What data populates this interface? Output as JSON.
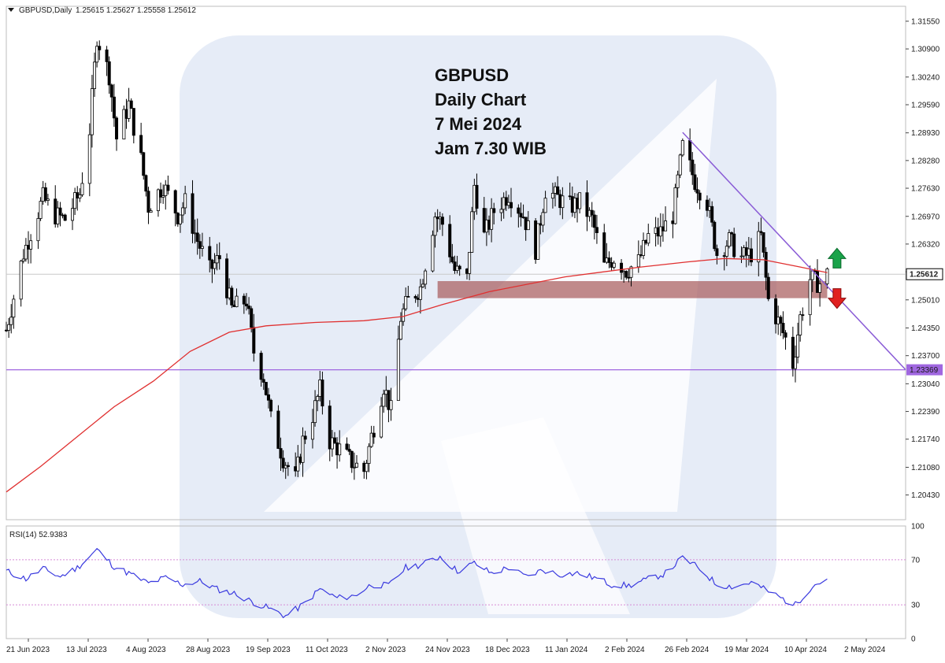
{
  "header": {
    "symbol": "GBPUSD,Daily",
    "ohlc": "1.25615 1.25627 1.25558 1.25612"
  },
  "annotation": {
    "lines": [
      "GBPUSD",
      "Daily Chart",
      "7 Mei 2024",
      "Jam 7.30 WIB"
    ]
  },
  "chart_data": {
    "type": "candlestick",
    "price_axis": {
      "range": [
        1.1985,
        1.319
      ],
      "ticks": [
        "1.31550",
        "1.30900",
        "1.30240",
        "1.29590",
        "1.28930",
        "1.28280",
        "1.27630",
        "1.26970",
        "1.26320",
        "1.25670",
        "1.25010",
        "1.24350",
        "1.23700",
        "1.23040",
        "1.22390",
        "1.21740",
        "1.21080",
        "1.20430"
      ]
    },
    "current_price": {
      "label": "1.25612",
      "value": 1.25612
    },
    "horizontal_line": {
      "label": "1.23369",
      "value": 1.23369
    },
    "supply_zone": {
      "from_date": "2023-11-29",
      "to_date": "2024-05-06",
      "low": 1.2505,
      "high": 1.2545
    },
    "trendline": {
      "start": [
        "2024-03-08",
        1.2894
      ],
      "end": [
        "2024-06-07",
        1.2337
      ]
    },
    "arrows": [
      {
        "direction": "up",
        "date": "2024-05-10",
        "value": 1.2598
      },
      {
        "direction": "down",
        "date": "2024-05-10",
        "value": 1.2505
      }
    ],
    "x_labels": [
      "21 Jun 2023",
      "13 Jul 2023",
      "4 Aug 2023",
      "28 Aug 2023",
      "19 Sep 2023",
      "11 Oct 2023",
      "2 Nov 2023",
      "24 Nov 2023",
      "18 Dec 2023",
      "11 Jan 2024",
      "2 Feb 2024",
      "26 Feb 2024",
      "19 Mar 2024",
      "10 Apr 2024",
      "2 May 2024"
    ],
    "x_date_range": [
      "2023-06-06",
      "2024-06-07"
    ],
    "close_path": [
      [
        "2023-06-06",
        1.243
      ],
      [
        "2023-06-13",
        1.261
      ],
      [
        "2023-06-21",
        1.274
      ],
      [
        "2023-06-26",
        1.27
      ],
      [
        "2023-06-30",
        1.269
      ],
      [
        "2023-07-06",
        1.275
      ],
      [
        "2023-07-10",
        1.29
      ],
      [
        "2023-07-13",
        1.312
      ],
      [
        "2023-07-18",
        1.303
      ],
      [
        "2023-07-21",
        1.288
      ],
      [
        "2023-07-26",
        1.296
      ],
      [
        "2023-07-31",
        1.283
      ],
      [
        "2023-08-03",
        1.272
      ],
      [
        "2023-08-09",
        1.277
      ],
      [
        "2023-08-15",
        1.27
      ],
      [
        "2023-08-18",
        1.273
      ],
      [
        "2023-08-23",
        1.264
      ],
      [
        "2023-08-28",
        1.257
      ],
      [
        "2023-09-01",
        1.26
      ],
      [
        "2023-09-06",
        1.248
      ],
      [
        "2023-09-12",
        1.25
      ],
      [
        "2023-09-15",
        1.238
      ],
      [
        "2023-09-19",
        1.232
      ],
      [
        "2023-09-22",
        1.222
      ],
      [
        "2023-09-27",
        1.213
      ],
      [
        "2023-10-02",
        1.208
      ],
      [
        "2023-10-05",
        1.217
      ],
      [
        "2023-10-09",
        1.223
      ],
      [
        "2023-10-12",
        1.229
      ],
      [
        "2023-10-16",
        1.217
      ],
      [
        "2023-10-20",
        1.215
      ],
      [
        "2023-10-25",
        1.212
      ],
      [
        "2023-10-30",
        1.21
      ],
      [
        "2023-11-02",
        1.218
      ],
      [
        "2023-11-07",
        1.23
      ],
      [
        "2023-11-10",
        1.224
      ],
      [
        "2023-11-14",
        1.246
      ],
      [
        "2023-11-17",
        1.25
      ],
      [
        "2023-11-22",
        1.253
      ],
      [
        "2023-11-28",
        1.27
      ],
      [
        "2023-12-01",
        1.268
      ],
      [
        "2023-12-06",
        1.257
      ],
      [
        "2023-12-11",
        1.255
      ],
      [
        "2023-12-14",
        1.277
      ],
      [
        "2023-12-18",
        1.265
      ],
      [
        "2023-12-22",
        1.271
      ],
      [
        "2023-12-28",
        1.275
      ],
      [
        "2024-01-03",
        1.27
      ],
      [
        "2024-01-08",
        1.262
      ],
      [
        "2024-01-12",
        1.276
      ],
      [
        "2024-01-17",
        1.274
      ],
      [
        "2024-01-22",
        1.272
      ],
      [
        "2024-01-26",
        1.273
      ],
      [
        "2024-01-31",
        1.269
      ],
      [
        "2024-02-05",
        1.258
      ],
      [
        "2024-02-09",
        1.26
      ],
      [
        "2024-02-14",
        1.257
      ],
      [
        "2024-02-19",
        1.259
      ],
      [
        "2024-02-23",
        1.265
      ],
      [
        "2024-02-28",
        1.266
      ],
      [
        "2024-03-04",
        1.27
      ],
      [
        "2024-03-08",
        1.286
      ],
      [
        "2024-03-13",
        1.278
      ],
      [
        "2024-03-18",
        1.273
      ],
      [
        "2024-03-22",
        1.261
      ],
      [
        "2024-03-27",
        1.264
      ],
      [
        "2024-04-01",
        1.26
      ],
      [
        "2024-04-05",
        1.261
      ],
      [
        "2024-04-09",
        1.265
      ],
      [
        "2024-04-12",
        1.25
      ],
      [
        "2024-04-16",
        1.245
      ],
      [
        "2024-04-19",
        1.241
      ],
      [
        "2024-04-22",
        1.235
      ],
      [
        "2024-04-25",
        1.246
      ],
      [
        "2024-04-29",
        1.255
      ],
      [
        "2024-05-03",
        1.254
      ],
      [
        "2024-05-06",
        1.2561
      ]
    ],
    "ma_path": [
      [
        "2023-06-06",
        1.205
      ],
      [
        "2023-06-20",
        1.211
      ],
      [
        "2023-07-05",
        1.218
      ],
      [
        "2023-07-20",
        1.225
      ],
      [
        "2023-08-05",
        1.231
      ],
      [
        "2023-08-20",
        1.238
      ],
      [
        "2023-09-05",
        1.2425
      ],
      [
        "2023-09-20",
        1.244
      ],
      [
        "2023-10-10",
        1.2448
      ],
      [
        "2023-10-30",
        1.2452
      ],
      [
        "2023-11-15",
        1.2462
      ],
      [
        "2023-12-01",
        1.249
      ],
      [
        "2023-12-20",
        1.252
      ],
      [
        "2024-01-20",
        1.2555
      ],
      [
        "2024-02-20",
        1.2578
      ],
      [
        "2024-03-10",
        1.259
      ],
      [
        "2024-03-25",
        1.2598
      ],
      [
        "2024-04-10",
        1.2595
      ],
      [
        "2024-04-25",
        1.2578
      ],
      [
        "2024-05-06",
        1.2565
      ]
    ],
    "rsi": {
      "label": "RSI(14) 52.9383",
      "ticks": [
        "100",
        "70",
        "30",
        "0"
      ],
      "levels": [
        70,
        30
      ],
      "path": [
        [
          "2023-06-06",
          60
        ],
        [
          "2023-06-14",
          53
        ],
        [
          "2023-06-21",
          62
        ],
        [
          "2023-06-28",
          55
        ],
        [
          "2023-07-05",
          63
        ],
        [
          "2023-07-13",
          79
        ],
        [
          "2023-07-20",
          64
        ],
        [
          "2023-07-27",
          57
        ],
        [
          "2023-08-03",
          49
        ],
        [
          "2023-08-10",
          54
        ],
        [
          "2023-08-17",
          48
        ],
        [
          "2023-08-24",
          51
        ],
        [
          "2023-08-31",
          44
        ],
        [
          "2023-09-07",
          40
        ],
        [
          "2023-09-14",
          33
        ],
        [
          "2023-09-21",
          27
        ],
        [
          "2023-09-28",
          20
        ],
        [
          "2023-10-05",
          30
        ],
        [
          "2023-10-12",
          44
        ],
        [
          "2023-10-19",
          36
        ],
        [
          "2023-10-26",
          38
        ],
        [
          "2023-11-02",
          48
        ],
        [
          "2023-11-09",
          47
        ],
        [
          "2023-11-16",
          63
        ],
        [
          "2023-11-23",
          66
        ],
        [
          "2023-11-30",
          73
        ],
        [
          "2023-12-07",
          60
        ],
        [
          "2023-12-14",
          67
        ],
        [
          "2023-12-21",
          58
        ],
        [
          "2023-12-28",
          63
        ],
        [
          "2024-01-04",
          55
        ],
        [
          "2024-01-11",
          61
        ],
        [
          "2024-01-18",
          57
        ],
        [
          "2024-01-25",
          58
        ],
        [
          "2024-02-01",
          54
        ],
        [
          "2024-02-08",
          48
        ],
        [
          "2024-02-15",
          47
        ],
        [
          "2024-02-22",
          52
        ],
        [
          "2024-03-01",
          58
        ],
        [
          "2024-03-08",
          72
        ],
        [
          "2024-03-15",
          62
        ],
        [
          "2024-03-22",
          48
        ],
        [
          "2024-03-29",
          46
        ],
        [
          "2024-04-05",
          50
        ],
        [
          "2024-04-12",
          42
        ],
        [
          "2024-04-19",
          34
        ],
        [
          "2024-04-23",
          30
        ],
        [
          "2024-04-30",
          47
        ],
        [
          "2024-05-06",
          53
        ]
      ]
    }
  },
  "styles": {
    "candle_color": "#000000",
    "ma_color": "#e03030",
    "trend_color": "#8a5cd6",
    "hline_color": "#a067e0",
    "rsi_color": "#3a3adf",
    "zone_color": "#a65a5a",
    "up_arrow": "#1aa34a",
    "down_arrow": "#e02020",
    "watermark": "#e3eaf6"
  }
}
